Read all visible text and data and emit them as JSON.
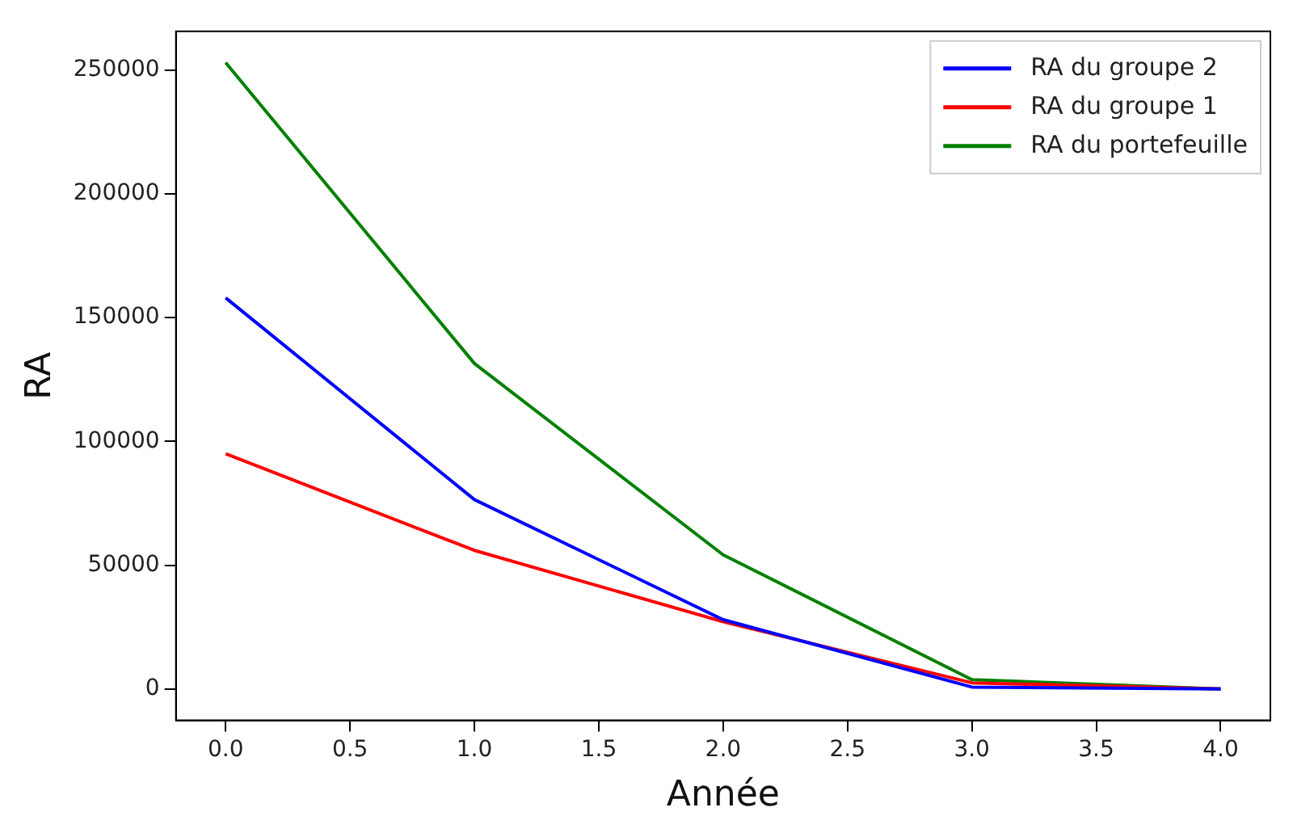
{
  "chart_data": {
    "type": "line",
    "xlabel": "Année",
    "ylabel": "RA",
    "x": [
      0,
      1,
      2,
      3,
      4
    ],
    "series": [
      {
        "name": "RA du groupe 2",
        "color": "#0000ff",
        "values": [
          158000,
          76500,
          28000,
          800,
          0
        ]
      },
      {
        "name": "RA du groupe 1",
        "color": "#ff0000",
        "values": [
          95000,
          56000,
          27200,
          2500,
          0
        ]
      },
      {
        "name": "RA du portefeuille",
        "color": "#008000",
        "values": [
          253000,
          131500,
          54200,
          3800,
          0
        ]
      }
    ],
    "xlim": [
      -0.2,
      4.2
    ],
    "xticks": [
      {
        "value": 0,
        "label": "0.0"
      },
      {
        "value": 0.5,
        "label": "0.5"
      },
      {
        "value": 1,
        "label": "1.0"
      },
      {
        "value": 1.5,
        "label": "1.5"
      },
      {
        "value": 2,
        "label": "2.0"
      },
      {
        "value": 2.5,
        "label": "2.5"
      },
      {
        "value": 3,
        "label": "3.0"
      },
      {
        "value": 3.5,
        "label": "3.5"
      },
      {
        "value": 4,
        "label": "4.0"
      }
    ],
    "ylim": [
      -12650,
      265650
    ],
    "yticks": [
      0,
      50000,
      100000,
      150000,
      200000,
      250000
    ],
    "grid": false,
    "legend": "top right",
    "marker": "none",
    "line_style": "solid"
  }
}
